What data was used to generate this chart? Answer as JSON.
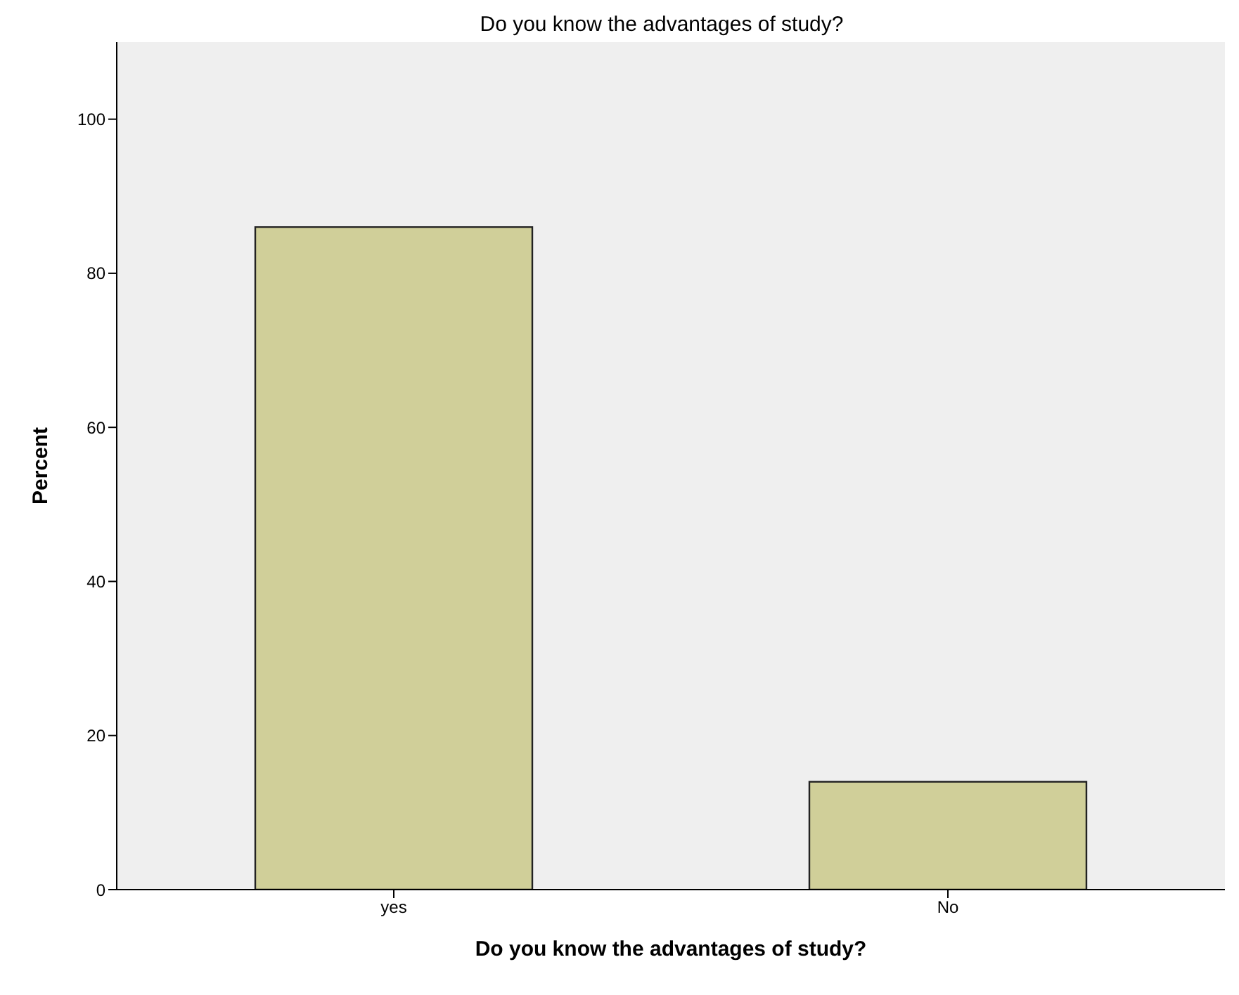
{
  "chart_data": {
    "type": "bar",
    "title": "Do you know the advantages of study?",
    "xlabel": "Do you know the advantages of study?",
    "ylabel": "Percent",
    "categories": [
      "yes",
      "No"
    ],
    "values": [
      86,
      14
    ],
    "color": "#d0cf99",
    "ylim": [
      0,
      110
    ],
    "yticks": [
      0,
      20,
      40,
      60,
      80,
      100
    ],
    "grid": false,
    "legend": false
  }
}
